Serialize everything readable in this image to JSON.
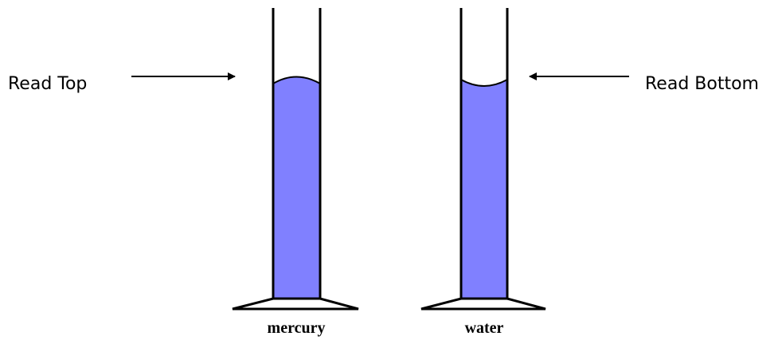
{
  "callouts": {
    "left": "Read Top",
    "right": "Read Bottom"
  },
  "cylinders": [
    {
      "label": "mercury"
    },
    {
      "label": "water"
    }
  ]
}
